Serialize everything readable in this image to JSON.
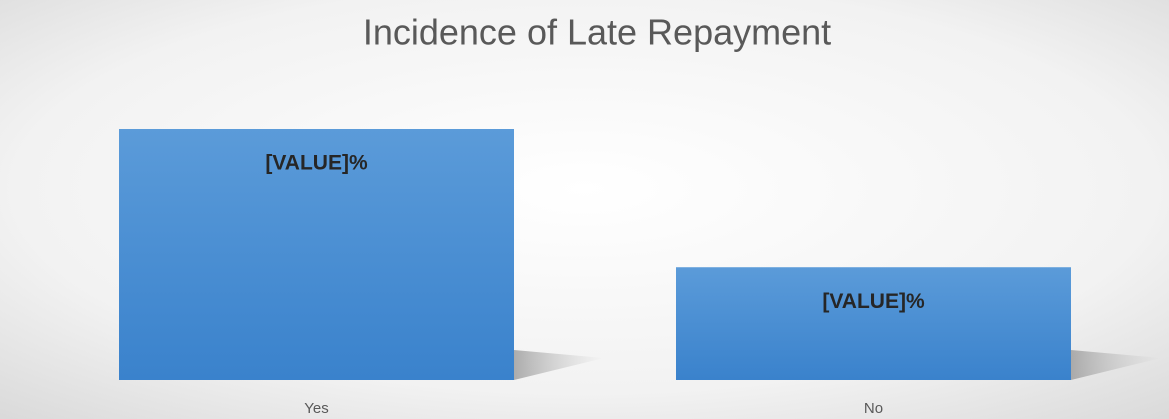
{
  "chart_data": {
    "type": "bar",
    "title": "Incidence of Late Repayment",
    "categories": [
      "Yes",
      "No"
    ],
    "values": [
      69,
      31
    ],
    "value_labels": [
      "[VALUE]%",
      "[VALUE]%"
    ],
    "color": "#4a8fd6"
  }
}
